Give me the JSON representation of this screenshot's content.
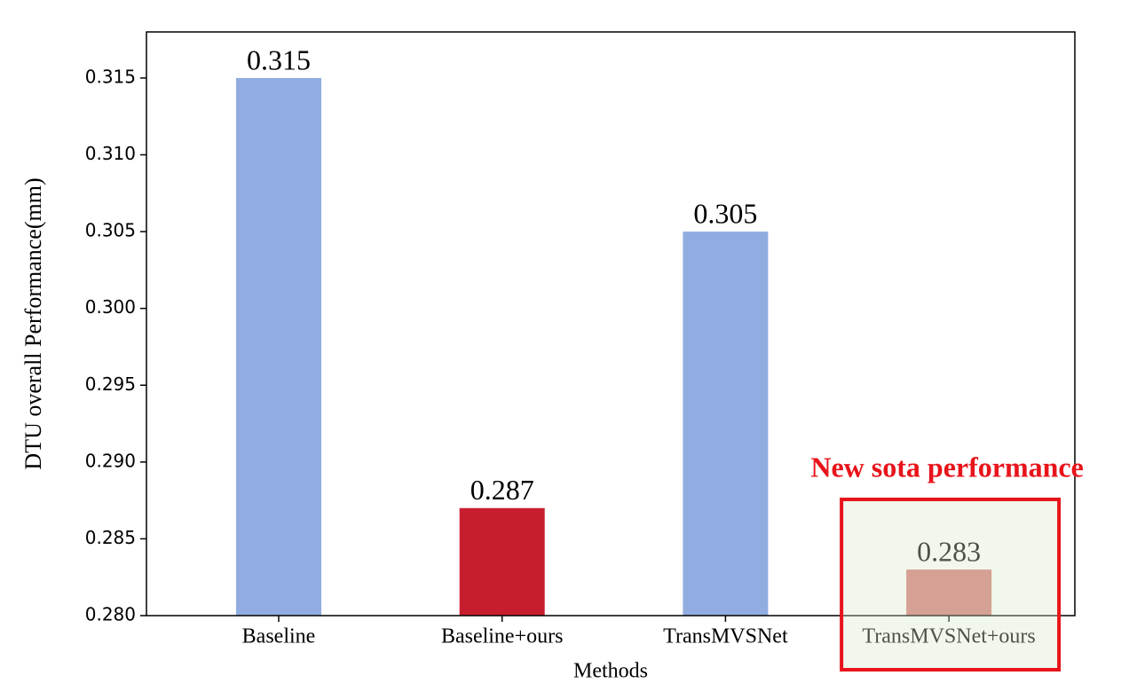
{
  "chart_data": {
    "type": "bar",
    "x_label": "Methods",
    "y_label": "DTU overall Performance(mm)",
    "categories": [
      "Baseline",
      "Baseline+ours",
      "TransMVSNet",
      "TransMVSNet+ours"
    ],
    "values": [
      0.315,
      0.287,
      0.305,
      0.283
    ],
    "colors": [
      "#91ace0",
      "#c71e2f",
      "#91ace0",
      "#d47b78"
    ],
    "ylim": [
      0.28,
      0.318
    ],
    "yticks": [
      {
        "value": 0.28,
        "label": "0.280"
      },
      0.285,
      {
        "value": 0.29,
        "label": "0.290"
      },
      0.295,
      {
        "value": 0.3,
        "label": "0.300"
      },
      0.305,
      {
        "value": 0.31,
        "label": "0.310"
      },
      0.315
    ],
    "annotation": "New sota performance",
    "annotation_color": "#e8141b",
    "grid": false
  }
}
